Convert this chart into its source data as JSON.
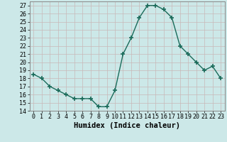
{
  "x": [
    0,
    1,
    2,
    3,
    4,
    5,
    6,
    7,
    8,
    9,
    10,
    11,
    12,
    13,
    14,
    15,
    16,
    17,
    18,
    19,
    20,
    21,
    22,
    23
  ],
  "y": [
    18.5,
    18.0,
    17.0,
    16.5,
    16.0,
    15.5,
    15.5,
    15.5,
    14.5,
    14.5,
    16.5,
    21.0,
    23.0,
    25.5,
    27.0,
    27.0,
    26.5,
    25.5,
    22.0,
    21.0,
    20.0,
    19.0,
    19.5,
    18.0
  ],
  "line_color": "#1a6b5a",
  "marker": "+",
  "marker_size": 4,
  "marker_lw": 1.2,
  "bg_color": "#cce8e8",
  "grid_color": "#b0d0d0",
  "xlabel": "Humidex (Indice chaleur)",
  "xlim": [
    -0.5,
    23.5
  ],
  "ylim": [
    14,
    27.5
  ],
  "yticks": [
    14,
    15,
    16,
    17,
    18,
    19,
    20,
    21,
    22,
    23,
    24,
    25,
    26,
    27
  ],
  "xtick_labels": [
    "0",
    "1",
    "2",
    "3",
    "4",
    "5",
    "6",
    "7",
    "8",
    "9",
    "10",
    "11",
    "12",
    "13",
    "14",
    "15",
    "16",
    "17",
    "18",
    "19",
    "20",
    "21",
    "22",
    "23"
  ],
  "xlabel_fontsize": 7.5,
  "tick_fontsize": 6.0,
  "linewidth": 1.0
}
